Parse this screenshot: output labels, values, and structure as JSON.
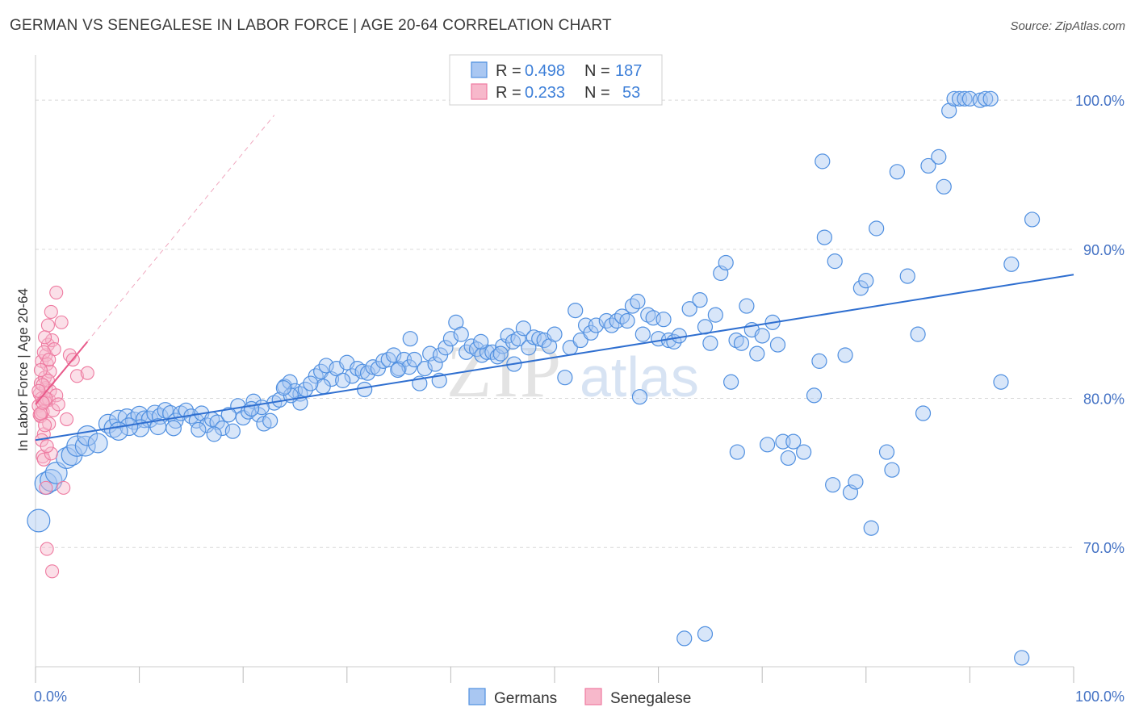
{
  "title": "GERMAN VS SENEGALESE IN LABOR FORCE | AGE 20-64 CORRELATION CHART",
  "source": "Source: ZipAtlas.com",
  "watermark": {
    "zip": "ZIP",
    "atlas": "atlas"
  },
  "legend": {
    "r_label": "R =",
    "n_label": "N =",
    "rows": [
      {
        "r": "0.498",
        "n": "187",
        "color": "#a9c7f2"
      },
      {
        "r": "0.233",
        "n": "53",
        "color": "#f7b8cb"
      }
    ]
  },
  "colors": {
    "blue": "#4f8fe0",
    "blue_fill": "#a9c7f2",
    "blue_line": "#2f6fd0",
    "pink": "#ee7aa0",
    "pink_fill": "#f7b8cb",
    "pink_line": "#e85a8a",
    "grid": "#d9d9d9",
    "axis_text": "#4472c4"
  },
  "chart_data": {
    "type": "scatter",
    "title": "GERMAN VS SENEGALESE IN LABOR FORCE | AGE 20-64 CORRELATION CHART",
    "xlabel": "",
    "ylabel": "In Labor Force | Age 20-64",
    "xlim": [
      0,
      100
    ],
    "ylim": [
      62,
      102.5
    ],
    "x_tick_labels": [
      {
        "v": 0,
        "label": "0.0%"
      },
      {
        "v": 100,
        "label": "100.0%"
      }
    ],
    "y_ticks": [
      {
        "v": 70,
        "label": "70.0%"
      },
      {
        "v": 80,
        "label": "80.0%"
      },
      {
        "v": 90,
        "label": "90.0%"
      },
      {
        "v": 100,
        "label": "100.0%"
      }
    ],
    "series": [
      {
        "name": "Germans",
        "trend": {
          "x0": 0,
          "y0": 77.2,
          "x1": 100,
          "y1": 88.3
        },
        "points": [
          [
            0.3,
            71.8
          ],
          [
            1.0,
            74.3
          ],
          [
            1.5,
            74.5
          ],
          [
            2.0,
            75.0
          ],
          [
            3.0,
            76.0
          ],
          [
            3.5,
            76.2
          ],
          [
            4.0,
            76.8
          ],
          [
            4.8,
            76.8
          ],
          [
            5.0,
            77.5
          ],
          [
            6.0,
            77.0
          ],
          [
            7.0,
            78.3
          ],
          [
            7.5,
            78.0
          ],
          [
            8.0,
            78.6
          ],
          [
            8.8,
            78.7
          ],
          [
            9.5,
            78.5
          ],
          [
            10.0,
            78.9
          ],
          [
            10.5,
            78.6
          ],
          [
            11.0,
            78.6
          ],
          [
            11.5,
            79.0
          ],
          [
            12.0,
            78.8
          ],
          [
            12.5,
            79.2
          ],
          [
            13.0,
            79.0
          ],
          [
            13.5,
            78.5
          ],
          [
            14.0,
            79.0
          ],
          [
            14.5,
            79.2
          ],
          [
            15.0,
            78.8
          ],
          [
            15.5,
            78.5
          ],
          [
            16.0,
            79.0
          ],
          [
            16.5,
            78.2
          ],
          [
            17.0,
            78.6
          ],
          [
            17.5,
            78.4
          ],
          [
            18.0,
            78.0
          ],
          [
            19.0,
            77.8
          ],
          [
            19.5,
            79.5
          ],
          [
            20.0,
            78.7
          ],
          [
            20.5,
            79.1
          ],
          [
            21.0,
            79.8
          ],
          [
            21.5,
            78.9
          ],
          [
            22.0,
            78.3
          ],
          [
            23.0,
            79.7
          ],
          [
            23.5,
            79.9
          ],
          [
            24.0,
            80.8
          ],
          [
            24.5,
            81.1
          ],
          [
            25.0,
            80.5
          ],
          [
            25.5,
            80.3
          ],
          [
            26.0,
            80.6
          ],
          [
            27.0,
            81.5
          ],
          [
            27.5,
            81.8
          ],
          [
            28.0,
            82.2
          ],
          [
            28.5,
            81.3
          ],
          [
            29.0,
            82.0
          ],
          [
            30.0,
            82.4
          ],
          [
            30.5,
            81.5
          ],
          [
            31.0,
            82.0
          ],
          [
            31.5,
            81.8
          ],
          [
            32.0,
            81.7
          ],
          [
            32.5,
            82.1
          ],
          [
            33.0,
            82.0
          ],
          [
            33.5,
            82.5
          ],
          [
            34.0,
            82.6
          ],
          [
            34.5,
            82.9
          ],
          [
            35.0,
            82.0
          ],
          [
            35.5,
            82.6
          ],
          [
            36.0,
            82.1
          ],
          [
            36.5,
            82.6
          ],
          [
            37.0,
            81.0
          ],
          [
            37.5,
            82.0
          ],
          [
            38.0,
            83.0
          ],
          [
            38.5,
            82.3
          ],
          [
            39.0,
            82.9
          ],
          [
            39.5,
            83.4
          ],
          [
            40.0,
            84.0
          ],
          [
            40.5,
            85.1
          ],
          [
            41.0,
            84.3
          ],
          [
            41.5,
            83.1
          ],
          [
            42.0,
            83.5
          ],
          [
            42.5,
            83.3
          ],
          [
            43.0,
            82.9
          ],
          [
            43.5,
            83.1
          ],
          [
            44.0,
            83.1
          ],
          [
            44.5,
            82.8
          ],
          [
            45.0,
            83.5
          ],
          [
            45.5,
            84.2
          ],
          [
            46.0,
            83.8
          ],
          [
            46.5,
            84.0
          ],
          [
            47.0,
            84.7
          ],
          [
            47.5,
            83.4
          ],
          [
            48.0,
            84.1
          ],
          [
            48.5,
            84.0
          ],
          [
            49.0,
            83.9
          ],
          [
            49.5,
            83.5
          ],
          [
            50.0,
            84.3
          ],
          [
            51.0,
            81.4
          ],
          [
            51.5,
            83.4
          ],
          [
            52.0,
            85.9
          ],
          [
            52.5,
            83.9
          ],
          [
            53.0,
            84.9
          ],
          [
            53.5,
            84.4
          ],
          [
            54.0,
            84.9
          ],
          [
            55.0,
            85.2
          ],
          [
            55.5,
            84.9
          ],
          [
            56.0,
            85.2
          ],
          [
            56.5,
            85.5
          ],
          [
            57.0,
            85.2
          ],
          [
            57.5,
            86.2
          ],
          [
            58.0,
            86.5
          ],
          [
            58.5,
            84.3
          ],
          [
            59.0,
            85.6
          ],
          [
            59.5,
            85.4
          ],
          [
            60.0,
            84.0
          ],
          [
            60.5,
            85.3
          ],
          [
            61.0,
            83.9
          ],
          [
            61.5,
            83.8
          ],
          [
            62.0,
            84.2
          ],
          [
            63.0,
            86.0
          ],
          [
            64.0,
            86.6
          ],
          [
            64.5,
            84.8
          ],
          [
            65.0,
            83.7
          ],
          [
            65.5,
            85.6
          ],
          [
            66.0,
            88.4
          ],
          [
            66.5,
            89.1
          ],
          [
            67.0,
            81.1
          ],
          [
            67.5,
            83.9
          ],
          [
            68.0,
            83.7
          ],
          [
            68.5,
            86.2
          ],
          [
            69.0,
            84.6
          ],
          [
            69.5,
            83.0
          ],
          [
            70.0,
            84.2
          ],
          [
            70.5,
            76.9
          ],
          [
            71.0,
            85.1
          ],
          [
            71.5,
            83.6
          ],
          [
            72.0,
            77.1
          ],
          [
            72.5,
            76.0
          ],
          [
            73.0,
            77.1
          ],
          [
            74.0,
            76.4
          ],
          [
            75.0,
            80.2
          ],
          [
            75.5,
            82.5
          ],
          [
            75.8,
            95.9
          ],
          [
            76.0,
            90.8
          ],
          [
            76.8,
            74.2
          ],
          [
            77.0,
            89.2
          ],
          [
            78.0,
            82.9
          ],
          [
            78.5,
            73.7
          ],
          [
            79.0,
            74.4
          ],
          [
            79.5,
            87.4
          ],
          [
            80.0,
            87.9
          ],
          [
            80.5,
            71.3
          ],
          [
            81.0,
            91.4
          ],
          [
            82.0,
            76.4
          ],
          [
            82.5,
            75.2
          ],
          [
            83.0,
            95.2
          ],
          [
            84.0,
            88.2
          ],
          [
            85.0,
            84.3
          ],
          [
            85.5,
            79.0
          ],
          [
            86.0,
            95.6
          ],
          [
            87.0,
            96.2
          ],
          [
            87.5,
            94.2
          ],
          [
            88.0,
            99.3
          ],
          [
            88.5,
            100.1
          ],
          [
            89.0,
            100.1
          ],
          [
            89.5,
            100.1
          ],
          [
            90.0,
            100.1
          ],
          [
            91.0,
            100.0
          ],
          [
            91.5,
            100.1
          ],
          [
            92.0,
            100.1
          ],
          [
            93.0,
            81.1
          ],
          [
            94.0,
            89.0
          ],
          [
            95.0,
            62.6
          ],
          [
            96.0,
            92.0
          ],
          [
            62.5,
            63.9
          ],
          [
            64.5,
            64.2
          ],
          [
            67.6,
            76.4
          ],
          [
            58.2,
            80.1
          ],
          [
            46.1,
            82.3
          ],
          [
            44.8,
            83.0
          ],
          [
            42.9,
            83.8
          ],
          [
            38.9,
            81.2
          ],
          [
            36.1,
            84.0
          ],
          [
            34.9,
            81.9
          ],
          [
            31.7,
            80.6
          ],
          [
            29.6,
            81.2
          ],
          [
            27.7,
            80.8
          ],
          [
            26.5,
            81.0
          ],
          [
            25.5,
            79.7
          ],
          [
            24.6,
            80.2
          ],
          [
            23.9,
            80.7
          ],
          [
            22.6,
            78.5
          ],
          [
            21.8,
            79.4
          ],
          [
            20.8,
            79.3
          ],
          [
            18.6,
            78.9
          ],
          [
            17.2,
            77.6
          ],
          [
            15.7,
            77.9
          ],
          [
            13.3,
            78.0
          ],
          [
            11.8,
            78.1
          ],
          [
            10.1,
            78.0
          ],
          [
            9.0,
            78.1
          ],
          [
            8.0,
            77.8
          ]
        ]
      },
      {
        "name": "Senegalese",
        "trend": {
          "x0": 0,
          "y0": 79.6,
          "x1": 5.0,
          "y1": 83.8
        },
        "trend_extended": {
          "x0": 0,
          "y0": 79.6,
          "x1": 23.0,
          "y1": 99.0
        },
        "points": [
          [
            0.3,
            79.5
          ],
          [
            0.4,
            80.3
          ],
          [
            0.5,
            81.0
          ],
          [
            0.5,
            78.8
          ],
          [
            0.6,
            80.0
          ],
          [
            0.6,
            82.5
          ],
          [
            0.7,
            79.1
          ],
          [
            0.7,
            76.1
          ],
          [
            0.8,
            77.6
          ],
          [
            0.8,
            75.9
          ],
          [
            0.9,
            79.8
          ],
          [
            0.9,
            81.4
          ],
          [
            1.0,
            82.9
          ],
          [
            1.0,
            80.7
          ],
          [
            1.0,
            74.0
          ],
          [
            1.1,
            69.9
          ],
          [
            1.1,
            82.3
          ],
          [
            1.2,
            83.6
          ],
          [
            1.2,
            84.9
          ],
          [
            1.3,
            79.9
          ],
          [
            1.3,
            78.3
          ],
          [
            1.4,
            80.5
          ],
          [
            1.4,
            81.8
          ],
          [
            1.5,
            85.8
          ],
          [
            1.5,
            76.3
          ],
          [
            1.6,
            83.9
          ],
          [
            1.6,
            68.4
          ],
          [
            1.7,
            79.2
          ],
          [
            1.8,
            83.3
          ],
          [
            2.0,
            80.2
          ],
          [
            2.0,
            87.1
          ],
          [
            2.2,
            79.6
          ],
          [
            2.5,
            85.1
          ],
          [
            2.7,
            74.0
          ],
          [
            3.0,
            78.6
          ],
          [
            3.3,
            82.9
          ],
          [
            3.6,
            82.6
          ],
          [
            4.0,
            81.5
          ],
          [
            5.0,
            81.7
          ],
          [
            0.4,
            78.9
          ],
          [
            0.6,
            77.2
          ],
          [
            0.8,
            83.1
          ],
          [
            1.0,
            80.0
          ],
          [
            1.2,
            81.2
          ],
          [
            0.5,
            79.0
          ],
          [
            0.7,
            80.9
          ],
          [
            0.9,
            78.2
          ],
          [
            1.1,
            76.8
          ],
          [
            1.3,
            82.6
          ],
          [
            0.3,
            80.5
          ],
          [
            0.5,
            81.9
          ],
          [
            0.7,
            79.7
          ],
          [
            0.9,
            84.1
          ]
        ]
      }
    ]
  },
  "bottom_legend": [
    {
      "label": "Germans",
      "color": "#a9c7f2"
    },
    {
      "label": "Senegalese",
      "color": "#f7b8cb"
    }
  ]
}
